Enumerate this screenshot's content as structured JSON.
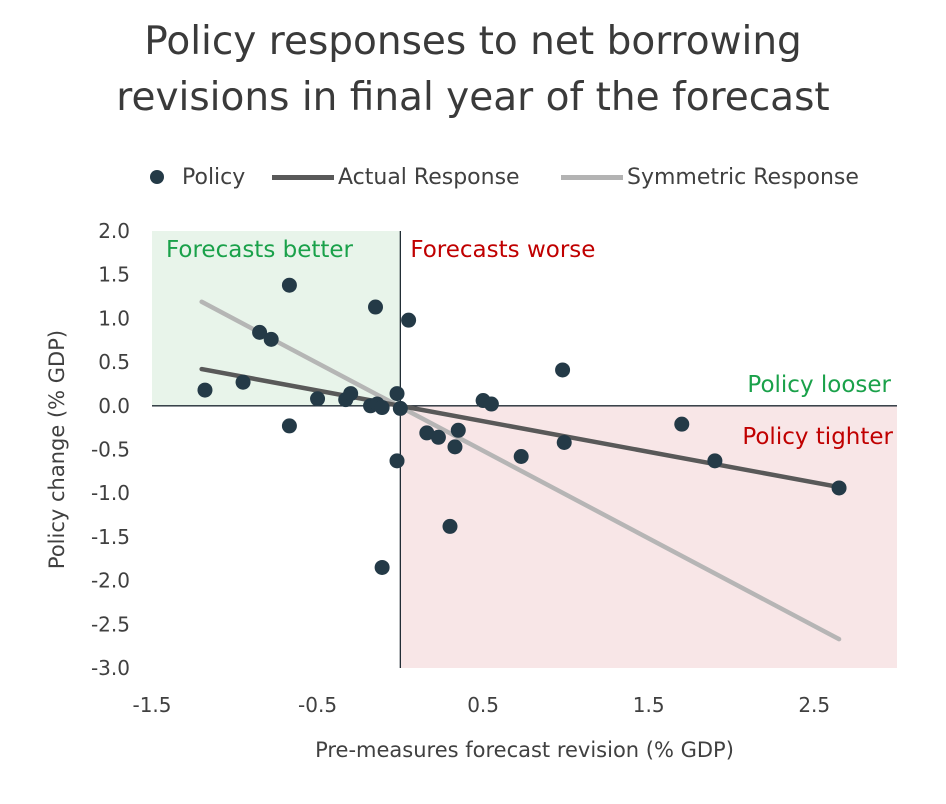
{
  "chart_data": {
    "type": "scatter",
    "title_line1": "Policy responses to net borrowing",
    "title_line2": "revisions in final year of the forecast",
    "xlabel": "Pre-measures forecast revision (% GDP)",
    "ylabel": "Policy change (% GDP)",
    "xlim": [
      -1.5,
      3.0
    ],
    "ylim": [
      -3.0,
      2.0
    ],
    "x_ticks": [
      "-1.5",
      "-0.5",
      "0.5",
      "1.5",
      "2.5"
    ],
    "x_tick_values": [
      -1.5,
      -0.5,
      0.5,
      1.5,
      2.5
    ],
    "y_ticks": [
      "2.0",
      "1.5",
      "1.0",
      "0.5",
      "0.0",
      "-0.5",
      "-1.0",
      "-1.5",
      "-2.0",
      "-2.5",
      "-3.0"
    ],
    "y_tick_values": [
      2.0,
      1.5,
      1.0,
      0.5,
      0.0,
      -0.5,
      -1.0,
      -1.5,
      -2.0,
      -2.5,
      -3.0
    ],
    "legend": {
      "policy": "Policy",
      "actual": "Actual Response",
      "symmetric": "Symmetric Response"
    },
    "quadrant_labels": {
      "forecasts_better": "Forecasts better",
      "forecasts_worse": "Forecasts worse",
      "policy_looser": "Policy looser",
      "policy_tighter": "Policy tighter"
    },
    "colors": {
      "points": "#243a47",
      "actual_line": "#595959",
      "symmetric_line": "#b3b3b3",
      "green_region": "#e8f4ea",
      "red_region": "#f8e6e7",
      "green_text": "#1aa14a",
      "red_text": "#c00000"
    },
    "series": [
      {
        "name": "Policy",
        "points": [
          [
            -1.18,
            0.18
          ],
          [
            -0.95,
            0.27
          ],
          [
            -0.85,
            0.84
          ],
          [
            -0.78,
            0.76
          ],
          [
            -0.67,
            1.38
          ],
          [
            -0.67,
            -0.23
          ],
          [
            -0.5,
            0.08
          ],
          [
            -0.33,
            0.07
          ],
          [
            -0.3,
            0.14
          ],
          [
            -0.18,
            0.0
          ],
          [
            -0.15,
            1.13
          ],
          [
            -0.14,
            0.02
          ],
          [
            -0.11,
            -0.02
          ],
          [
            -0.11,
            -1.85
          ],
          [
            -0.02,
            0.14
          ],
          [
            -0.02,
            -0.63
          ],
          [
            0.0,
            -0.03
          ],
          [
            0.05,
            0.98
          ],
          [
            0.16,
            -0.31
          ],
          [
            0.23,
            -0.36
          ],
          [
            0.3,
            -1.38
          ],
          [
            0.33,
            -0.47
          ],
          [
            0.35,
            -0.28
          ],
          [
            0.5,
            0.06
          ],
          [
            0.55,
            0.02
          ],
          [
            0.73,
            -0.58
          ],
          [
            0.98,
            0.41
          ],
          [
            0.99,
            -0.42
          ],
          [
            1.7,
            -0.21
          ],
          [
            1.9,
            -0.63
          ],
          [
            2.65,
            -0.94
          ]
        ]
      },
      {
        "name": "Actual Response",
        "line": [
          [
            -1.2,
            0.42
          ],
          [
            2.65,
            -0.93
          ]
        ]
      },
      {
        "name": "Symmetric Response",
        "line": [
          [
            -1.2,
            1.19
          ],
          [
            2.65,
            -2.67
          ]
        ]
      }
    ]
  }
}
